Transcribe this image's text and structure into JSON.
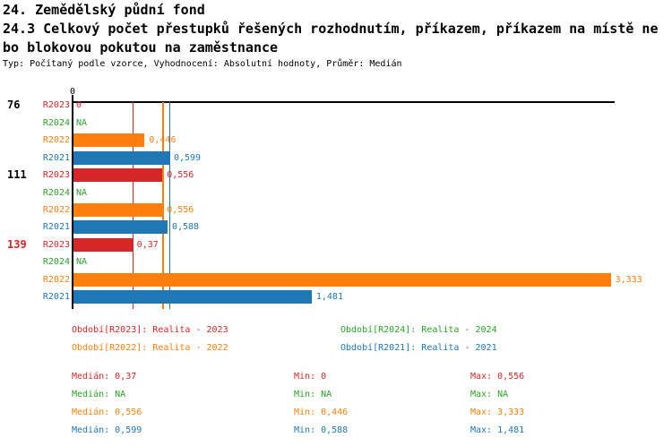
{
  "header": {
    "title_line1": "24. Zemědělský půdní fond",
    "title_line2": "24.3 Celkový počet přestupků řešených rozhodnutím, příkazem, příkazem na místě ne",
    "title_line3": "bo blokovou pokutou na zaměstnance",
    "meta": "Typ: Počítaný podle vzorce, Vyhodnocení: Absolutní hodnoty, Průměr: Medián"
  },
  "colors": {
    "r2023": "#d62728",
    "r2024": "#2ca02c",
    "r2022": "#ff7f0e",
    "r2021": "#1f77b4",
    "axis": "#000000",
    "highlight_category": "#d62728"
  },
  "chart_data": {
    "type": "bar",
    "orientation": "horizontal",
    "categories": [
      "76",
      "111",
      "139"
    ],
    "category_colors": [
      "#000000",
      "#000000",
      "#d62728"
    ],
    "zero_tick_label": "0",
    "xlim": [
      0,
      3.36
    ],
    "grid": false,
    "series": [
      {
        "name": "R2023",
        "color": "#d62728",
        "values": [
          0,
          0.556,
          0.37
        ],
        "displays": [
          "0",
          "0,556",
          "0,37"
        ],
        "median": 0.37
      },
      {
        "name": "R2024",
        "color": "#2ca02c",
        "values": [
          null,
          null,
          null
        ],
        "displays": [
          "NA",
          "NA",
          "NA"
        ],
        "median": null
      },
      {
        "name": "R2022",
        "color": "#ff7f0e",
        "values": [
          0.446,
          0.556,
          3.333
        ],
        "displays": [
          "0,446",
          "0,556",
          "3,333"
        ],
        "median": 0.556
      },
      {
        "name": "R2021",
        "color": "#1f77b4",
        "values": [
          0.599,
          0.588,
          1.481
        ],
        "displays": [
          "0,599",
          "0,588",
          "1,481"
        ],
        "median": 0.599
      }
    ]
  },
  "legend": {
    "items": [
      {
        "text": "Období[R2023]: Realita - 2023",
        "color": "#d62728",
        "row": 0,
        "col": 0
      },
      {
        "text": "Období[R2024]: Realita - 2024",
        "color": "#2ca02c",
        "row": 0,
        "col": 1
      },
      {
        "text": "Období[R2022]: Realita - 2022",
        "color": "#ff7f0e",
        "row": 1,
        "col": 0
      },
      {
        "text": "Období[R2021]: Realita - 2021",
        "color": "#1f77b4",
        "row": 1,
        "col": 1
      }
    ]
  },
  "stats": {
    "rows": [
      {
        "color": "#d62728",
        "median": "Medián: 0,37",
        "min": "Min: 0",
        "max": "Max: 0,556"
      },
      {
        "color": "#2ca02c",
        "median": "Medián: NA",
        "min": "Min: NA",
        "max": "Max: NA"
      },
      {
        "color": "#ff7f0e",
        "median": "Medián: 0,556",
        "min": "Min: 0,446",
        "max": "Max: 3,333"
      },
      {
        "color": "#1f77b4",
        "median": "Medián: 0,599",
        "min": "Min: 0,588",
        "max": "Max: 1,481"
      }
    ]
  }
}
